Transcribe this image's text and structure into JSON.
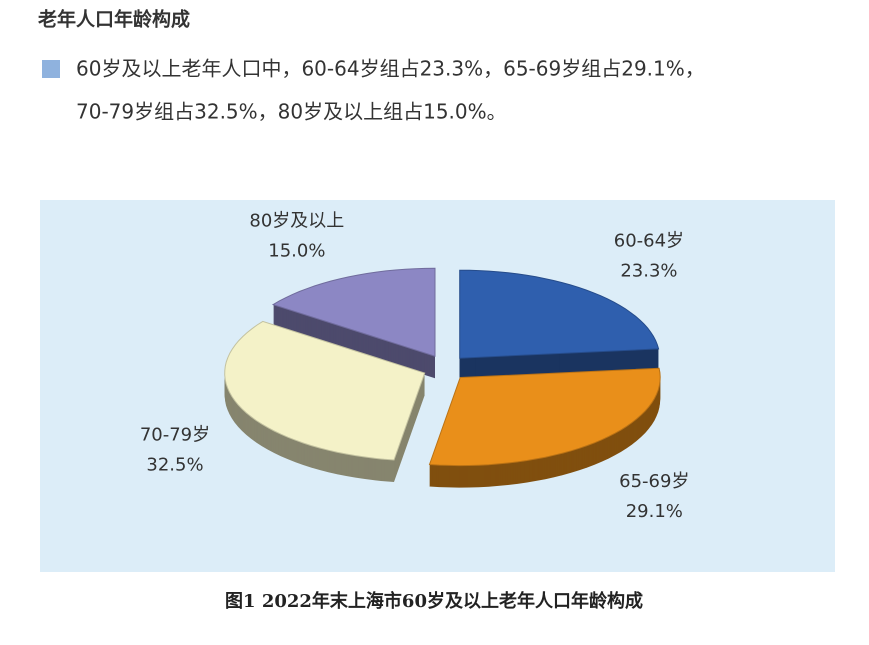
{
  "header": {
    "title": "老年人口年龄构成"
  },
  "paragraph": {
    "lines": [
      "60岁及以上老年人口中，60-64岁组占23.3%，65-69岁组占29.1%，",
      "70-79岁组占32.5%，80岁及以上组占15.0%。"
    ]
  },
  "chart_data": {
    "type": "pie",
    "categories": [
      "60-64岁",
      "65-69岁",
      "70-79岁",
      "80岁及以上"
    ],
    "values": [
      23.3,
      29.1,
      32.5,
      15.0
    ],
    "value_labels": [
      "23.3%",
      "29.1%",
      "32.5%",
      "15.0%"
    ],
    "colors": [
      "#2f5fae",
      "#e98f1a",
      "#f4f2c8",
      "#8c87c4"
    ]
  },
  "caption": "图1  2022年末上海市60岁及以上老年人口年龄构成"
}
